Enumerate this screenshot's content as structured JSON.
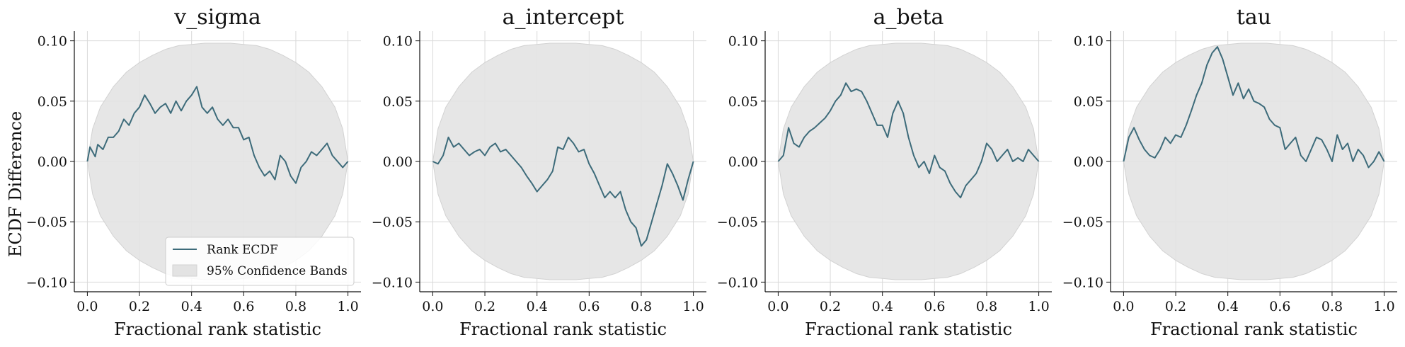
{
  "chart_data": {
    "type": "line",
    "shared_ylabel": "ECDF Difference",
    "xlabel": "Fractional rank statistic",
    "xlim": [
      -0.05,
      1.05
    ],
    "ylim": [
      -0.108,
      0.108
    ],
    "xticks": [
      0.0,
      0.2,
      0.4,
      0.6,
      0.8,
      1.0
    ],
    "xtick_labels": [
      "0.0",
      "0.2",
      "0.4",
      "0.6",
      "0.8",
      "1.0"
    ],
    "yticks": [
      0.1,
      0.05,
      0.0,
      -0.05,
      -0.1
    ],
    "ytick_labels": [
      "0.10",
      "0.05",
      "0.00",
      "−0.05",
      "−0.10"
    ],
    "grid": true,
    "line_color": "#3d6b7a",
    "band_color": "#e3e3e3",
    "band_edge_color": "#d2d2d2",
    "legend": {
      "placement": "lower-right of first panel",
      "entries": [
        "Rank ECDF",
        "95% Confidence Bands"
      ]
    },
    "band": {
      "x": [
        0.0,
        0.02,
        0.05,
        0.1,
        0.15,
        0.2,
        0.25,
        0.3,
        0.35,
        0.4,
        0.45,
        0.5,
        0.55,
        0.6,
        0.65,
        0.7,
        0.75,
        0.8,
        0.85,
        0.9,
        0.95,
        0.98,
        1.0
      ],
      "upper": [
        0.0,
        0.027,
        0.045,
        0.062,
        0.074,
        0.082,
        0.088,
        0.093,
        0.096,
        0.097,
        0.098,
        0.098,
        0.098,
        0.097,
        0.096,
        0.093,
        0.088,
        0.082,
        0.074,
        0.062,
        0.045,
        0.027,
        0.0
      ],
      "lower": [
        0.0,
        -0.027,
        -0.045,
        -0.062,
        -0.074,
        -0.082,
        -0.088,
        -0.093,
        -0.096,
        -0.097,
        -0.098,
        -0.098,
        -0.098,
        -0.097,
        -0.096,
        -0.093,
        -0.088,
        -0.082,
        -0.074,
        -0.062,
        -0.045,
        -0.027,
        0.0
      ]
    },
    "panels": [
      {
        "title": "v_sigma",
        "x": [
          0.0,
          0.01,
          0.02,
          0.03,
          0.04,
          0.06,
          0.08,
          0.1,
          0.12,
          0.14,
          0.16,
          0.18,
          0.2,
          0.22,
          0.24,
          0.26,
          0.28,
          0.3,
          0.32,
          0.34,
          0.36,
          0.38,
          0.4,
          0.42,
          0.44,
          0.46,
          0.48,
          0.5,
          0.52,
          0.54,
          0.56,
          0.58,
          0.6,
          0.62,
          0.64,
          0.66,
          0.68,
          0.7,
          0.72,
          0.74,
          0.76,
          0.78,
          0.8,
          0.82,
          0.84,
          0.86,
          0.88,
          0.9,
          0.92,
          0.94,
          0.96,
          0.98,
          1.0
        ],
        "y": [
          0.0,
          0.012,
          0.008,
          0.004,
          0.014,
          0.01,
          0.02,
          0.02,
          0.025,
          0.035,
          0.03,
          0.04,
          0.045,
          0.055,
          0.048,
          0.04,
          0.045,
          0.048,
          0.04,
          0.05,
          0.042,
          0.05,
          0.055,
          0.062,
          0.045,
          0.04,
          0.045,
          0.035,
          0.03,
          0.035,
          0.028,
          0.028,
          0.018,
          0.02,
          0.005,
          -0.005,
          -0.012,
          -0.008,
          -0.015,
          0.005,
          0.0,
          -0.012,
          -0.018,
          -0.005,
          0.0,
          0.008,
          0.005,
          0.01,
          0.015,
          0.005,
          0.0,
          -0.005,
          0.0
        ]
      },
      {
        "title": "a_intercept",
        "x": [
          0.0,
          0.02,
          0.04,
          0.06,
          0.08,
          0.1,
          0.12,
          0.14,
          0.16,
          0.18,
          0.2,
          0.22,
          0.24,
          0.26,
          0.28,
          0.3,
          0.32,
          0.34,
          0.36,
          0.38,
          0.4,
          0.42,
          0.44,
          0.46,
          0.48,
          0.5,
          0.52,
          0.54,
          0.56,
          0.58,
          0.6,
          0.62,
          0.64,
          0.66,
          0.68,
          0.7,
          0.72,
          0.74,
          0.76,
          0.78,
          0.8,
          0.82,
          0.84,
          0.86,
          0.88,
          0.9,
          0.92,
          0.94,
          0.96,
          0.98,
          1.0
        ],
        "y": [
          0.0,
          -0.002,
          0.005,
          0.02,
          0.012,
          0.015,
          0.01,
          0.005,
          0.008,
          0.01,
          0.005,
          0.012,
          0.015,
          0.008,
          0.01,
          0.005,
          0.0,
          -0.005,
          -0.012,
          -0.018,
          -0.025,
          -0.02,
          -0.015,
          -0.008,
          0.012,
          0.01,
          0.02,
          0.015,
          0.008,
          0.01,
          -0.002,
          -0.01,
          -0.02,
          -0.03,
          -0.025,
          -0.03,
          -0.025,
          -0.04,
          -0.05,
          -0.055,
          -0.07,
          -0.065,
          -0.05,
          -0.035,
          -0.02,
          -0.002,
          -0.01,
          -0.02,
          -0.032,
          -0.015,
          0.0
        ]
      },
      {
        "title": "a_beta",
        "x": [
          0.0,
          0.02,
          0.04,
          0.06,
          0.08,
          0.1,
          0.12,
          0.14,
          0.16,
          0.18,
          0.2,
          0.22,
          0.24,
          0.26,
          0.28,
          0.3,
          0.32,
          0.34,
          0.36,
          0.38,
          0.4,
          0.42,
          0.44,
          0.46,
          0.48,
          0.5,
          0.52,
          0.54,
          0.56,
          0.58,
          0.6,
          0.62,
          0.64,
          0.66,
          0.68,
          0.7,
          0.72,
          0.74,
          0.76,
          0.78,
          0.8,
          0.82,
          0.84,
          0.86,
          0.88,
          0.9,
          0.92,
          0.94,
          0.96,
          0.98,
          1.0
        ],
        "y": [
          0.0,
          0.005,
          0.028,
          0.015,
          0.012,
          0.02,
          0.025,
          0.028,
          0.032,
          0.036,
          0.042,
          0.05,
          0.055,
          0.065,
          0.058,
          0.06,
          0.058,
          0.05,
          0.04,
          0.03,
          0.03,
          0.02,
          0.04,
          0.05,
          0.04,
          0.02,
          0.005,
          -0.005,
          0.0,
          -0.01,
          0.005,
          -0.005,
          -0.008,
          -0.018,
          -0.025,
          -0.03,
          -0.02,
          -0.015,
          -0.01,
          0.0,
          0.015,
          0.01,
          0.0,
          0.005,
          0.01,
          0.0,
          0.003,
          0.0,
          0.01,
          0.005,
          0.0
        ]
      },
      {
        "title": "tau",
        "x": [
          0.0,
          0.02,
          0.04,
          0.06,
          0.08,
          0.1,
          0.12,
          0.14,
          0.16,
          0.18,
          0.2,
          0.22,
          0.24,
          0.26,
          0.28,
          0.3,
          0.32,
          0.34,
          0.36,
          0.38,
          0.4,
          0.42,
          0.44,
          0.46,
          0.48,
          0.5,
          0.52,
          0.54,
          0.56,
          0.58,
          0.6,
          0.62,
          0.64,
          0.66,
          0.68,
          0.7,
          0.72,
          0.74,
          0.76,
          0.78,
          0.8,
          0.82,
          0.84,
          0.86,
          0.88,
          0.9,
          0.92,
          0.94,
          0.96,
          0.98,
          1.0
        ],
        "y": [
          0.0,
          0.02,
          0.028,
          0.018,
          0.01,
          0.005,
          0.003,
          0.01,
          0.02,
          0.015,
          0.022,
          0.02,
          0.03,
          0.042,
          0.055,
          0.065,
          0.08,
          0.09,
          0.095,
          0.085,
          0.07,
          0.055,
          0.065,
          0.052,
          0.06,
          0.05,
          0.048,
          0.045,
          0.035,
          0.03,
          0.028,
          0.01,
          0.015,
          0.02,
          0.005,
          0.0,
          0.01,
          0.02,
          0.018,
          0.01,
          0.0,
          0.022,
          0.01,
          0.015,
          0.0,
          0.01,
          0.005,
          -0.005,
          0.0,
          0.008,
          0.0
        ]
      }
    ]
  }
}
